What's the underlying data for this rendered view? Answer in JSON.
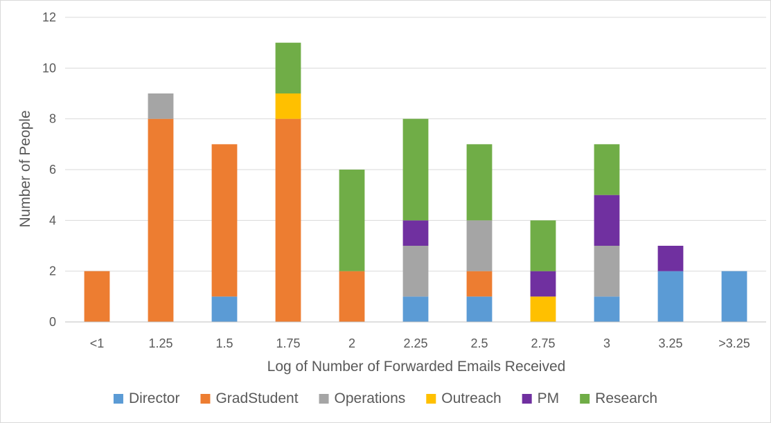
{
  "chart_data": {
    "type": "bar",
    "stacked": true,
    "title": "",
    "xlabel": "Log of Number of Forwarded Emails Received",
    "ylabel": "Number of People",
    "ylim": [
      0,
      12
    ],
    "yticks": [
      "0",
      "2",
      "4",
      "6",
      "8",
      "10",
      "12"
    ],
    "grid": true,
    "legend_position": "bottom",
    "categories": [
      "<1",
      "1.25",
      "1.5",
      "1.75",
      "2",
      "2.25",
      "2.5",
      "2.75",
      "3",
      "3.25",
      ">3.25"
    ],
    "series": [
      {
        "name": "Director",
        "color": "#5b9bd5",
        "values": [
          0,
          0,
          1,
          0,
          0,
          1,
          1,
          0,
          1,
          2,
          2
        ]
      },
      {
        "name": "GradStudent",
        "color": "#ed7d31",
        "values": [
          2,
          8,
          6,
          8,
          2,
          0,
          1,
          0,
          0,
          0,
          0
        ]
      },
      {
        "name": "Operations",
        "color": "#a5a5a5",
        "values": [
          0,
          1,
          0,
          0,
          0,
          2,
          2,
          0,
          2,
          0,
          0
        ]
      },
      {
        "name": "Outreach",
        "color": "#ffc000",
        "values": [
          0,
          0,
          0,
          1,
          0,
          0,
          0,
          1,
          0,
          0,
          0
        ]
      },
      {
        "name": "PM",
        "color": "#7030a0",
        "values": [
          0,
          0,
          0,
          0,
          0,
          1,
          0,
          1,
          2,
          1,
          0
        ]
      },
      {
        "name": "Research",
        "color": "#70ad47",
        "values": [
          0,
          0,
          0,
          2,
          4,
          4,
          3,
          2,
          2,
          0,
          0
        ]
      }
    ]
  }
}
